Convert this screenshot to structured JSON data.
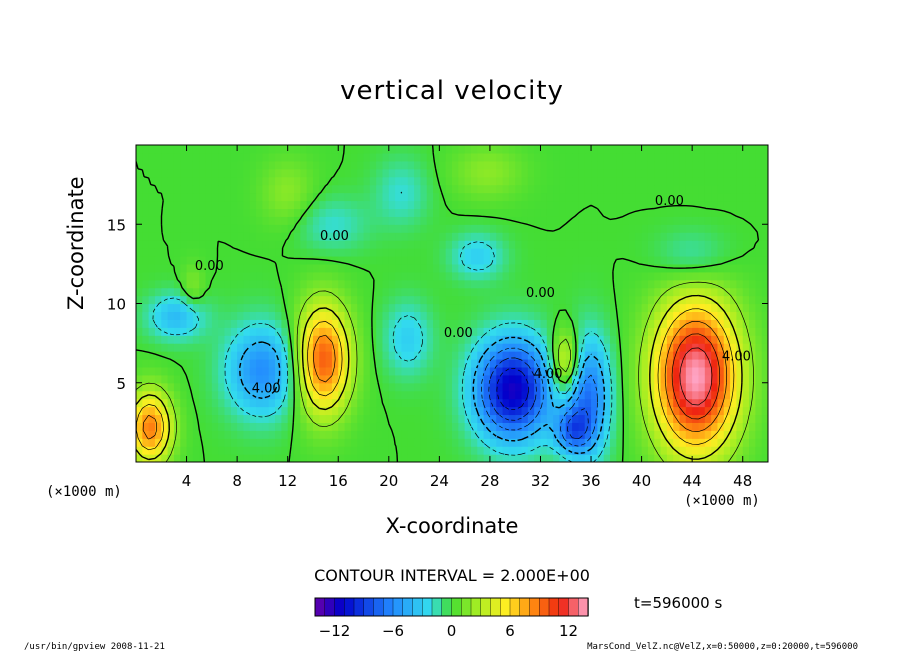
{
  "chart_data": {
    "type": "heatmap",
    "title": "vertical velocity",
    "xlabel": "X-coordinate",
    "ylabel": "Z-coordinate",
    "x_unit_left": "(×1000 m)",
    "x_unit_right": "(×1000 m)",
    "xlim": [
      0,
      50
    ],
    "ylim": [
      0,
      20
    ],
    "xticks": [
      4,
      8,
      12,
      16,
      20,
      24,
      28,
      32,
      36,
      40,
      44,
      48
    ],
    "yticks": [
      5,
      10,
      15
    ],
    "contour_interval": "CONTOUR INTERVAL = 2.000E+00",
    "time_label": "t=596000 s",
    "colorbar_ticks": [
      -12,
      -6,
      0,
      6,
      12
    ],
    "colorbar_range": [
      -14,
      14
    ],
    "contour_labels": [
      {
        "text": "4.00",
        "x": 10.3,
        "z": 4.4
      },
      {
        "text": "4.00",
        "x": 32.6,
        "z": 5.3
      },
      {
        "text": "4.00",
        "x": 47.5,
        "z": 6.4
      },
      {
        "text": "0.00",
        "x": 5.8,
        "z": 12.1
      },
      {
        "text": "0.00",
        "x": 15.7,
        "z": 14.0
      },
      {
        "text": "0.00",
        "x": 25.5,
        "z": 7.9
      },
      {
        "text": "0.00",
        "x": 32.0,
        "z": 10.4
      },
      {
        "text": "0.00",
        "x": 42.2,
        "z": 16.2
      }
    ],
    "features": [
      {
        "kind": "updraft",
        "x": 44.3,
        "z": 5.4,
        "peak": 14,
        "sx": 2.3,
        "sz": 3.3
      },
      {
        "kind": "updraft",
        "x": 14.8,
        "z": 6.5,
        "peak": 10,
        "sx": 1.5,
        "sz": 2.4
      },
      {
        "kind": "updraft",
        "x": 1.1,
        "z": 2.2,
        "peak": 9,
        "sx": 1.2,
        "sz": 1.6
      },
      {
        "kind": "updraft",
        "x": 34.0,
        "z": 6.3,
        "peak": 6,
        "sx": 0.8,
        "sz": 1.4
      },
      {
        "kind": "updraft",
        "x": 12.0,
        "z": 17.0,
        "peak": 2,
        "sx": 1.5,
        "sz": 1.5
      },
      {
        "kind": "updraft",
        "x": 27.8,
        "z": 18.3,
        "peak": 2,
        "sx": 2.0,
        "sz": 1.2
      },
      {
        "kind": "updraft",
        "x": 4.5,
        "z": 11.0,
        "peak": 2,
        "sx": 0.6,
        "sz": 1.0
      },
      {
        "kind": "downdraft",
        "x": 29.8,
        "z": 4.6,
        "peak": -12,
        "sx": 2.1,
        "sz": 2.2
      },
      {
        "kind": "downdraft",
        "x": 10.0,
        "z": 5.8,
        "peak": -6,
        "sx": 2.0,
        "sz": 2.0
      },
      {
        "kind": "downdraft",
        "x": 35.8,
        "z": 4.2,
        "peak": -7,
        "sx": 1.2,
        "sz": 2.6
      },
      {
        "kind": "downdraft",
        "x": 34.5,
        "z": 2.0,
        "peak": -6,
        "sx": 1.0,
        "sz": 1.0
      },
      {
        "kind": "downdraft",
        "x": 3.2,
        "z": 9.2,
        "peak": -4,
        "sx": 1.6,
        "sz": 1.0
      },
      {
        "kind": "downdraft",
        "x": 21.5,
        "z": 7.8,
        "peak": -3,
        "sx": 1.3,
        "sz": 1.6
      },
      {
        "kind": "downdraft",
        "x": 15.5,
        "z": 15.0,
        "peak": -2,
        "sx": 2.0,
        "sz": 1.2
      },
      {
        "kind": "downdraft",
        "x": 27.0,
        "z": 13.0,
        "peak": -3,
        "sx": 1.5,
        "sz": 1.0
      },
      {
        "kind": "downdraft",
        "x": 44.0,
        "z": 13.0,
        "peak": -2,
        "sx": 2.0,
        "sz": 1.2
      },
      {
        "kind": "downdraft",
        "x": 21.0,
        "z": 17.0,
        "peak": -2,
        "sx": 1.5,
        "sz": 1.5
      }
    ]
  },
  "footer": {
    "left": "/usr/bin/gpview  2008-11-21",
    "right": "MarsCond_VelZ.nc@VelZ,x=0:50000,z=0:20000,t=596000"
  }
}
